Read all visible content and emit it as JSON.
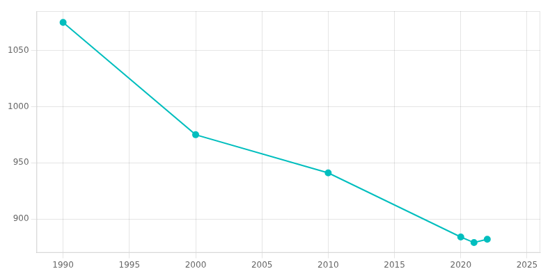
{
  "chart_data": {
    "type": "line",
    "x": [
      1990,
      2000,
      2010,
      2020,
      2021,
      2022
    ],
    "values": [
      1075,
      975,
      941,
      884,
      879,
      882
    ],
    "color": "#00BEBE",
    "marker": "circle",
    "xlim": [
      1988,
      2026
    ],
    "xticks": [
      1990,
      1995,
      2000,
      2005,
      2010,
      2015,
      2020,
      2025
    ],
    "ylim": [
      870,
      1085
    ],
    "yticks": [
      900,
      950,
      1000,
      1050
    ],
    "grid": true
  }
}
